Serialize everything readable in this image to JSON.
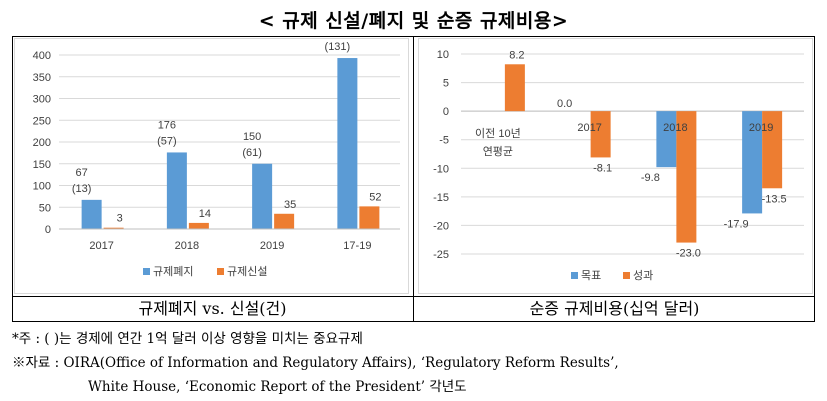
{
  "title": "< 규제 신설/폐지 및 순증 규제비용>",
  "captions": {
    "left": "규제폐지 vs. 신설(건)",
    "right": "순증 규제비용(십억 달러)"
  },
  "notes": {
    "note1": "*주 : ( )는 경제에 연간 1억 달러 이상 영향을 미치는 중요규제",
    "note2": "※자료 : OIRA(Office of Information and Regulatory Affairs), ‘Regulatory Reform Results’,",
    "note3": "White House, ‘Economic Report of the President’ 각년도"
  },
  "chart_data": [
    {
      "type": "bar",
      "categories": [
        "2017",
        "2018",
        "2019",
        "17-19"
      ],
      "series": [
        {
          "name": "규제폐지",
          "values": [
            67,
            176,
            150,
            393
          ],
          "sub_labels": [
            "(13)",
            "(57)",
            "(61)",
            "(131)"
          ],
          "color": "#5b9bd5"
        },
        {
          "name": "규제신설",
          "values": [
            3,
            14,
            35,
            52
          ],
          "color": "#ed7d31"
        }
      ],
      "ylim": [
        0,
        400
      ],
      "yticks": [
        "0",
        "50",
        "100",
        "150",
        "200",
        "250",
        "300",
        "350",
        "400"
      ],
      "grid": true,
      "legend": "bottom"
    },
    {
      "type": "bar",
      "categories": [
        "이전 10년 연평균",
        "2017",
        "2018",
        "2019"
      ],
      "series": [
        {
          "name": "목표",
          "values": [
            null,
            0.0,
            -9.8,
            -17.9
          ],
          "labels": [
            "",
            "0.0",
            "-9.8",
            "-17.9"
          ],
          "color": "#5b9bd5"
        },
        {
          "name": "성과",
          "values": [
            8.2,
            -8.1,
            -23.0,
            -13.5
          ],
          "labels": [
            "8.2",
            "-8.1",
            "-23.0",
            "-13.5"
          ],
          "color": "#ed7d31"
        }
      ],
      "ylim": [
        -25,
        10
      ],
      "yticks": [
        "10",
        "5",
        "0",
        "-5",
        "-10",
        "-15",
        "-20",
        "-25"
      ],
      "grid": true,
      "legend": "bottom"
    }
  ]
}
